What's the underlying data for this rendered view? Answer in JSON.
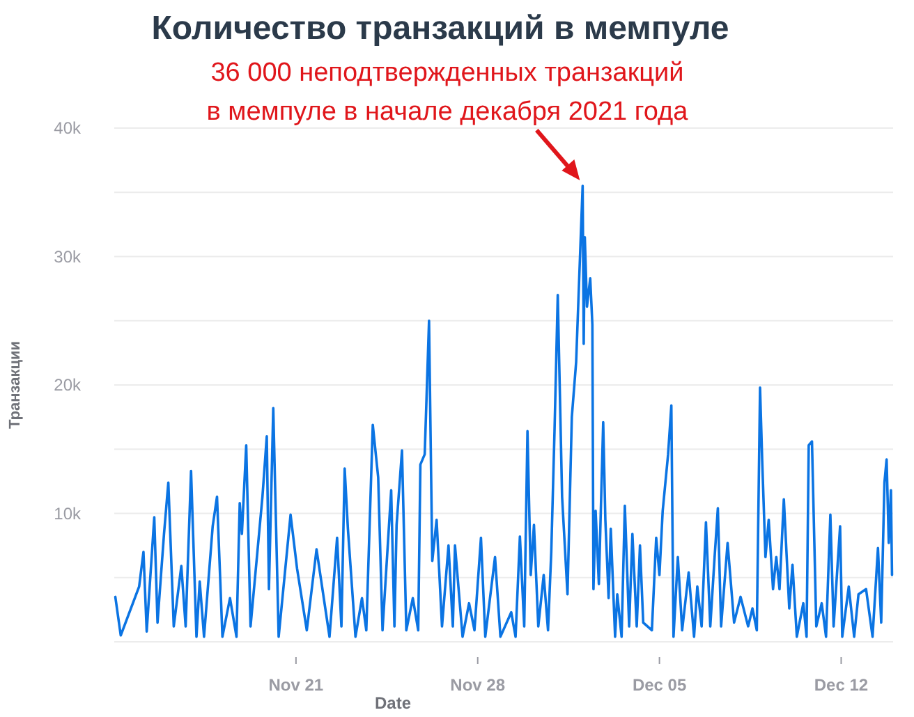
{
  "chart_data": {
    "type": "line",
    "title": "Количество транзакций в мемпуле",
    "xlabel": "Date",
    "ylabel": "Транзакции",
    "annotations": [
      {
        "text": "36 000 неподтвержденных транзакций\nв мемпуле в начале декабря 2021 года",
        "x": "2021-12-02T01:00",
        "y": 35500
      }
    ],
    "xlim": [
      "2021-11-14",
      "2021-12-14"
    ],
    "xticks": [
      {
        "value": "2021-11-21",
        "label": "Nov 21"
      },
      {
        "value": "2021-11-28",
        "label": "Nov 28"
      },
      {
        "value": "2021-12-05",
        "label": "Dec 05"
      },
      {
        "value": "2021-12-12",
        "label": "Dec 12"
      }
    ],
    "ylim": [
      0,
      40000
    ],
    "yticks": [
      {
        "value": 0,
        "label": null
      },
      {
        "value": 5000,
        "label": null
      },
      {
        "value": 10000,
        "label": "10k"
      },
      {
        "value": 15000,
        "label": null
      },
      {
        "value": 20000,
        "label": "20k"
      },
      {
        "value": 25000,
        "label": null
      },
      {
        "value": 30000,
        "label": "30k"
      },
      {
        "value": 35000,
        "label": null
      },
      {
        "value": 40000,
        "label": "40k"
      }
    ],
    "grid": "y",
    "marker": "none",
    "line_style": "solid",
    "series": [
      {
        "color": "#0b74e3",
        "x": [
          "2021-11-14T01:00",
          "2021-11-14T06:00",
          "2021-11-14T23:00",
          "2021-11-15T03:00",
          "2021-11-15T06:00",
          "2021-11-15T13:00",
          "2021-11-15T16:00",
          "2021-11-15T22:00",
          "2021-11-16T02:00",
          "2021-11-16T07:00",
          "2021-11-16T14:00",
          "2021-11-16T18:00",
          "2021-11-16T23:00",
          "2021-11-17T04:00",
          "2021-11-17T07:00",
          "2021-11-17T11:00",
          "2021-11-17T19:00",
          "2021-11-17T23:00",
          "2021-11-18T04:00",
          "2021-11-18T11:00",
          "2021-11-18T17:00",
          "2021-11-18T20:00",
          "2021-11-18T22:00",
          "2021-11-19T02:00",
          "2021-11-19T06:00",
          "2021-11-19T17:00",
          "2021-11-19T21:00",
          "2021-11-19T23:00",
          "2021-11-20T03:00",
          "2021-11-20T08:00",
          "2021-11-20T19:00",
          "2021-11-21T01:00",
          "2021-11-21T10:00",
          "2021-11-21T19:00",
          "2021-11-22T07:00",
          "2021-11-22T14:00",
          "2021-11-22T18:00",
          "2021-11-22T21:00",
          "2021-11-23T00:00",
          "2021-11-23T07:00",
          "2021-11-23T13:00",
          "2021-11-23T17:00",
          "2021-11-23T23:00",
          "2021-11-24T04:00",
          "2021-11-24T08:00",
          "2021-11-24T16:00",
          "2021-11-24T19:00",
          "2021-11-24T21:00",
          "2021-11-25T02:00",
          "2021-11-25T06:00",
          "2021-11-25T12:00",
          "2021-11-25T17:00",
          "2021-11-25T19:00",
          "2021-11-25T23:00",
          "2021-11-26T03:00",
          "2021-11-26T06:00",
          "2021-11-26T10:00",
          "2021-11-26T15:00",
          "2021-11-26T21:00",
          "2021-11-27T01:00",
          "2021-11-27T03:00",
          "2021-11-27T10:00",
          "2021-11-27T16:00",
          "2021-11-27T21:00",
          "2021-11-28T03:00",
          "2021-11-28T07:00",
          "2021-11-28T16:00",
          "2021-11-28T21:00",
          "2021-11-29T07:00",
          "2021-11-29T11:00",
          "2021-11-29T15:00",
          "2021-11-29T19:00",
          "2021-11-29T22:00",
          "2021-11-30T01:00",
          "2021-11-30T04:00",
          "2021-11-30T08:00",
          "2021-11-30T13:00",
          "2021-11-30T17:00",
          "2021-11-30T20:00",
          "2021-11-30T23:00",
          "2021-12-01T02:00",
          "2021-12-01T06:00",
          "2021-12-01T11:00",
          "2021-12-01T15:00",
          "2021-12-01T19:00",
          "2021-12-01T22:00",
          "2021-12-02T01:00",
          "2021-12-02T02:00",
          "2021-12-02T03:00",
          "2021-12-02T05:00",
          "2021-12-02T08:00",
          "2021-12-02T10:00",
          "2021-12-02T11:00",
          "2021-12-02T13:00",
          "2021-12-02T16:00",
          "2021-12-02T20:00",
          "2021-12-02T22:00",
          "2021-12-03T01:00",
          "2021-12-03T03:00",
          "2021-12-03T07:00",
          "2021-12-03T09:00",
          "2021-12-03T13:00",
          "2021-12-03T16:00",
          "2021-12-03T20:00",
          "2021-12-03T23:00",
          "2021-12-04T03:00",
          "2021-12-04T06:00",
          "2021-12-04T09:00",
          "2021-12-04T17:00",
          "2021-12-04T21:00",
          "2021-12-05T00:00",
          "2021-12-05T03:00",
          "2021-12-05T08:00",
          "2021-12-05T11:00",
          "2021-12-05T13:00",
          "2021-12-05T17:00",
          "2021-12-05T21:00",
          "2021-12-06T03:00",
          "2021-12-06T08:00",
          "2021-12-06T11:00",
          "2021-12-06T15:00",
          "2021-12-06T19:00",
          "2021-12-06T23:00",
          "2021-12-07T03:00",
          "2021-12-07T06:00",
          "2021-12-07T09:00",
          "2021-12-07T15:00",
          "2021-12-07T21:00",
          "2021-12-08T03:00",
          "2021-12-08T10:00",
          "2021-12-08T14:00",
          "2021-12-08T18:00",
          "2021-12-08T21:00",
          "2021-12-08T23:00",
          "2021-12-09T02:00",
          "2021-12-09T05:00",
          "2021-12-09T09:00",
          "2021-12-09T12:00",
          "2021-12-09T15:00",
          "2021-12-09T19:00",
          "2021-12-10T00:00",
          "2021-12-10T03:00",
          "2021-12-10T07:00",
          "2021-12-10T13:00",
          "2021-12-10T16:00",
          "2021-12-10T18:00",
          "2021-12-10T21:00",
          "2021-12-11T01:00",
          "2021-12-11T06:00",
          "2021-12-11T10:00",
          "2021-12-11T14:00",
          "2021-12-11T17:00",
          "2021-12-11T23:00",
          "2021-12-12T01:00",
          "2021-12-12T07:00",
          "2021-12-12T12:00",
          "2021-12-12T16:00",
          "2021-12-12T23:00",
          "2021-12-13T05:00",
          "2021-12-13T10:00",
          "2021-12-13T13:00",
          "2021-12-13T16:00",
          "2021-12-13T18:00",
          "2021-12-13T20:00",
          "2021-12-13T22:00",
          "2021-12-13T23:00"
        ],
        "values": [
          3500,
          500,
          4300,
          7000,
          800,
          9700,
          1500,
          8400,
          12400,
          1200,
          5900,
          1200,
          13300,
          400,
          4700,
          400,
          9000,
          11300,
          400,
          3400,
          400,
          10800,
          8400,
          15300,
          1200,
          11300,
          16000,
          4100,
          18200,
          400,
          9900,
          5700,
          900,
          7200,
          400,
          8100,
          1200,
          13500,
          8800,
          400,
          3400,
          900,
          16900,
          12800,
          900,
          11800,
          1200,
          9100,
          14900,
          900,
          3400,
          900,
          13800,
          14600,
          25000,
          6300,
          9500,
          1200,
          7500,
          1200,
          7500,
          400,
          3000,
          900,
          8100,
          400,
          6600,
          400,
          2300,
          400,
          8200,
          1200,
          16400,
          5200,
          9100,
          1200,
          5200,
          900,
          7000,
          16400,
          27000,
          11300,
          3700,
          17500,
          21800,
          28700,
          35500,
          23200,
          31500,
          26100,
          28300,
          24700,
          4100,
          10200,
          4500,
          17100,
          9500,
          3400,
          8800,
          400,
          3700,
          400,
          10600,
          1200,
          8400,
          1200,
          7500,
          1500,
          900,
          8100,
          5200,
          10200,
          14600,
          18400,
          400,
          6600,
          900,
          5400,
          400,
          4300,
          1200,
          9300,
          1200,
          6600,
          10400,
          1200,
          7700,
          1500,
          3500,
          1200,
          2600,
          900,
          19800,
          14100,
          6600,
          9500,
          4100,
          6600,
          4100,
          11100,
          2600,
          6000,
          400,
          3000,
          400,
          15300,
          15600,
          1200,
          3000,
          400,
          9900,
          1200,
          9000,
          400,
          4300,
          400,
          3700,
          4100,
          400,
          7300,
          1500,
          12400,
          14200,
          7700,
          11800,
          5200
        ]
      }
    ]
  }
}
